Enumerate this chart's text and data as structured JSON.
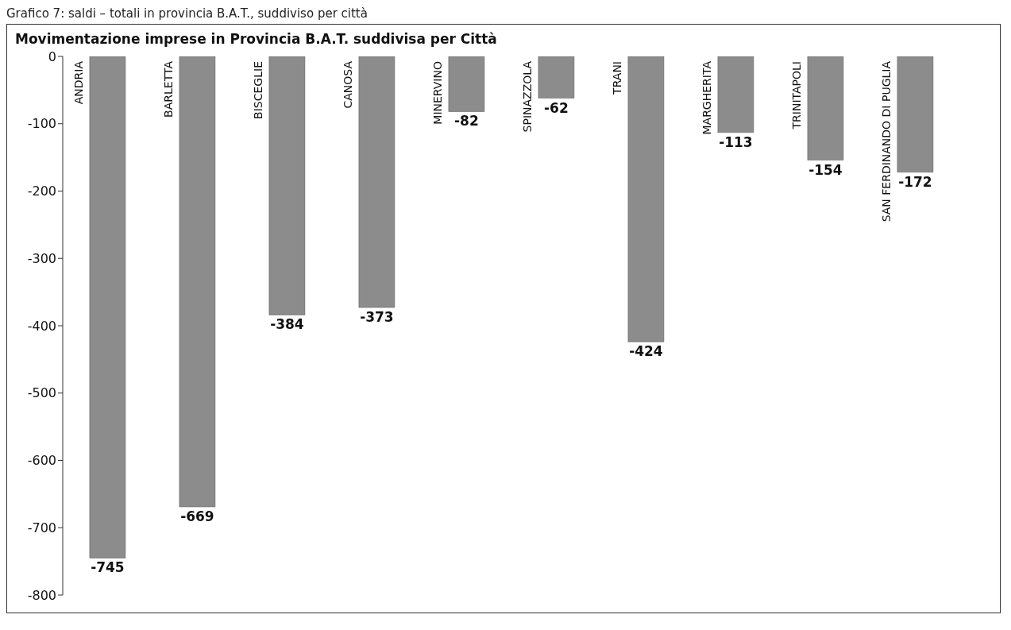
{
  "chart_data": {
    "type": "bar",
    "title": "Movimentazione imprese in Provincia B.A.T. suddivisa per Città",
    "annotations": [
      "Grafico 7: saldi – totali in provincia B.A.T., suddiviso per città"
    ],
    "categories": [
      "ANDRIA",
      "BARLETTA",
      "BISCEGLIE",
      "CANOSA",
      "MINERVINO",
      "SPINAZZOLA",
      "TRANI",
      "MARGHERITA",
      "TRINITAPOLI",
      "SAN FERDINANDO DI PUGLIA"
    ],
    "values": [
      -745,
      -669,
      -384,
      -373,
      -82,
      -62,
      -424,
      -113,
      -154,
      -172
    ],
    "color": "#8c8c8c",
    "ylim": [
      -800,
      0
    ],
    "yticks": [
      -800,
      -700,
      -600,
      -500,
      -400,
      -300,
      -200,
      -100,
      0
    ],
    "data_labels": true,
    "grid": false,
    "legend": false
  }
}
